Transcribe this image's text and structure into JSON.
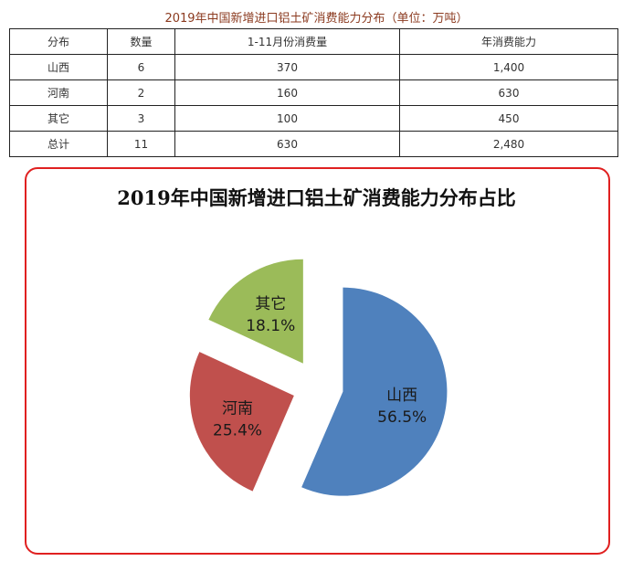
{
  "table": {
    "title": "2019年中国新增进口铝土矿消费能力分布（单位：万吨）",
    "headers": [
      "分布",
      "数量",
      "1-11月份消费量",
      "年消费能力"
    ],
    "rows": [
      [
        "山西",
        "6",
        "370",
        "1,400"
      ],
      [
        "河南",
        "2",
        "160",
        "630"
      ],
      [
        "其它",
        "3",
        "100",
        "450"
      ],
      [
        "总计",
        "11",
        "630",
        "2,480"
      ]
    ]
  },
  "chart_data": {
    "type": "pie",
    "title": "2019年中国新增进口铝土矿消费能力分布占比",
    "categories": [
      "山西",
      "河南",
      "其它"
    ],
    "values": [
      56.5,
      25.4,
      18.1
    ],
    "labels": [
      "56.5%",
      "25.4%",
      "18.1%"
    ],
    "colors": [
      "#4f81bd",
      "#c0504d",
      "#9bbb59"
    ],
    "exploded": true,
    "legend": "none"
  }
}
